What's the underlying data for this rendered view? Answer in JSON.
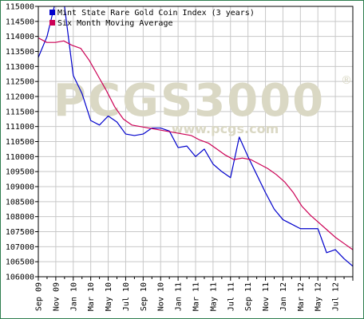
{
  "chart_data": {
    "type": "line",
    "title": "",
    "xlabel": "",
    "ylabel": "",
    "x_tick_labels": [
      "Sep 09",
      "Nov 09",
      "Jan 10",
      "Mar 10",
      "May 10",
      "Jul 10",
      "Sep 10",
      "Nov 10",
      "Jan 11",
      "Mar 11",
      "May 11",
      "Jul 11",
      "Sep 11",
      "Nov 11",
      "Jan 12",
      "Mar 12",
      "May 12",
      "Jul 12"
    ],
    "y_tick_labels": [
      "106000",
      "106500",
      "107000",
      "107500",
      "108000",
      "108500",
      "109000",
      "109500",
      "110000",
      "110500",
      "111000",
      "111500",
      "112000",
      "112500",
      "113000",
      "113500",
      "114000",
      "114500",
      "115000"
    ],
    "ylim": [
      106000,
      115000
    ],
    "grid": true,
    "legend_position": "top-left",
    "watermark": {
      "main": "PCGS3000",
      "sub": "www.pcgs.com",
      "mark": "®"
    },
    "series": [
      {
        "name": "Mint State Rare Gold Coin Index (3 years)",
        "color": "#0000cc",
        "values": [
          113300,
          114000,
          115200,
          115000,
          112700,
          112100,
          111200,
          111050,
          111350,
          111150,
          110750,
          110700,
          110750,
          110950,
          110950,
          110850,
          110300,
          110350,
          110000,
          110250,
          109750,
          109500,
          109300,
          110650,
          110000,
          109400,
          108800,
          108250,
          107900,
          107750,
          107600,
          107600,
          107600,
          106800,
          106900,
          106600,
          106350
        ]
      },
      {
        "name": "Six Month Moving Average",
        "color": "#cc0055",
        "values": [
          113950,
          113800,
          113800,
          113850,
          113700,
          113600,
          113200,
          112700,
          112200,
          111650,
          111250,
          111050,
          111000,
          110950,
          110900,
          110850,
          110800,
          110750,
          110700,
          110550,
          110450,
          110250,
          110050,
          109900,
          109950,
          109900,
          109750,
          109600,
          109400,
          109150,
          108800,
          108350,
          108050,
          107800,
          107550,
          107300,
          107100,
          106900
        ]
      }
    ]
  }
}
